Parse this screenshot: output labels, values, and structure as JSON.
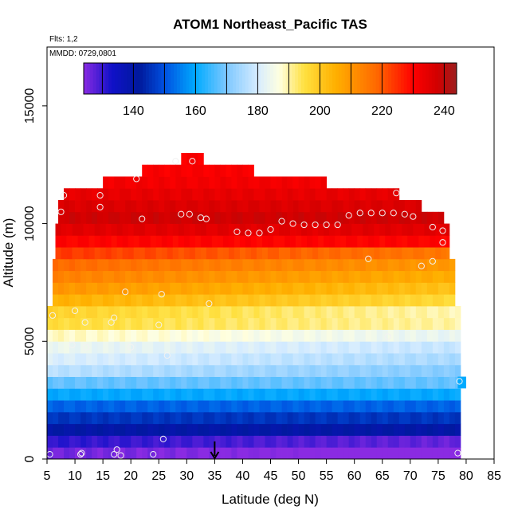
{
  "chart_data": {
    "type": "heatmap",
    "title": "ATOM1 Northeast_Pacific TAS",
    "xlabel": "Latitude (deg N)",
    "ylabel": "Altitude (m)",
    "xlim": [
      5,
      85
    ],
    "ylim": [
      0,
      17500
    ],
    "x_ticks": [
      5,
      10,
      15,
      20,
      25,
      30,
      35,
      40,
      45,
      50,
      55,
      60,
      65,
      70,
      75,
      80,
      85
    ],
    "y_ticks": [
      0,
      5000,
      10000,
      15000
    ],
    "notes": {
      "flights": "Flts: 1,2",
      "dates": "MMDD: 0729,0801"
    },
    "colorbar": {
      "range": [
        124,
        244
      ],
      "ticks": [
        140,
        160,
        180,
        200,
        220,
        240
      ],
      "stops": [
        {
          "v": 124,
          "c": "#8a2be2"
        },
        {
          "v": 133,
          "c": "#1010c8"
        },
        {
          "v": 142,
          "c": "#001a9c"
        },
        {
          "v": 150,
          "c": "#0050e0"
        },
        {
          "v": 160,
          "c": "#00aaff"
        },
        {
          "v": 170,
          "c": "#7ec8ff"
        },
        {
          "v": 180,
          "c": "#d6ecff"
        },
        {
          "v": 187,
          "c": "#ffffe0"
        },
        {
          "v": 195,
          "c": "#ffe040"
        },
        {
          "v": 205,
          "c": "#ffb000"
        },
        {
          "v": 218,
          "c": "#ff6a00"
        },
        {
          "v": 230,
          "c": "#ff0000"
        },
        {
          "v": 238,
          "c": "#d00000"
        },
        {
          "v": 244,
          "c": "#9c1e1e"
        }
      ]
    },
    "tas_profile": [
      {
        "alt": 250,
        "tas": 126
      },
      {
        "alt": 750,
        "tas": 131
      },
      {
        "alt": 1250,
        "tas": 140
      },
      {
        "alt": 1750,
        "tas": 146
      },
      {
        "alt": 2250,
        "tas": 152
      },
      {
        "alt": 2750,
        "tas": 160
      },
      {
        "alt": 3250,
        "tas": 168
      },
      {
        "alt": 3750,
        "tas": 174
      },
      {
        "alt": 4250,
        "tas": 178
      },
      {
        "alt": 4750,
        "tas": 181
      },
      {
        "alt": 5250,
        "tas": 186
      },
      {
        "alt": 5750,
        "tas": 193
      },
      {
        "alt": 6250,
        "tas": 198
      },
      {
        "alt": 6750,
        "tas": 205
      },
      {
        "alt": 7250,
        "tas": 210
      },
      {
        "alt": 7750,
        "tas": 214
      },
      {
        "alt": 8250,
        "tas": 218
      },
      {
        "alt": 8750,
        "tas": 224
      },
      {
        "alt": 9250,
        "tas": 230
      },
      {
        "alt": 9750,
        "tas": 235
      },
      {
        "alt": 10250,
        "tas": 238
      },
      {
        "alt": 10750,
        "tas": 236
      },
      {
        "alt": 11250,
        "tas": 234
      },
      {
        "alt": 11750,
        "tas": 232
      },
      {
        "alt": 12250,
        "tas": 231
      },
      {
        "alt": 12750,
        "tas": 231
      }
    ],
    "coverage": [
      {
        "alt_bottom": 0,
        "alt_top": 6500,
        "lat_min": 5,
        "lat_max": 79
      },
      {
        "alt_bottom": 6500,
        "alt_top": 8500,
        "lat_min": 6,
        "lat_max": 78
      },
      {
        "alt_bottom": 8500,
        "alt_top": 10000,
        "lat_min": 6.5,
        "lat_max": 77
      },
      {
        "alt_bottom": 10000,
        "alt_top": 10500,
        "lat_min": 7,
        "lat_max": 76
      },
      {
        "alt_bottom": 10500,
        "alt_top": 11000,
        "lat_min": 7,
        "lat_max": 72
      },
      {
        "alt_bottom": 11000,
        "alt_top": 11500,
        "lat_min": 8,
        "lat_max": 68
      },
      {
        "alt_bottom": 11500,
        "alt_top": 12000,
        "lat_min": 15,
        "lat_max": 55
      },
      {
        "alt_bottom": 12000,
        "alt_top": 12500,
        "lat_min": 22,
        "lat_max": 42
      },
      {
        "alt_bottom": 12500,
        "alt_top": 13000,
        "lat_min": 29,
        "lat_max": 33
      }
    ],
    "observations": [
      {
        "lat": 5.5,
        "alt": 200
      },
      {
        "lat": 11,
        "alt": 200
      },
      {
        "lat": 11.2,
        "alt": 250
      },
      {
        "lat": 17,
        "alt": 200
      },
      {
        "lat": 17.5,
        "alt": 400
      },
      {
        "lat": 18.2,
        "alt": 150
      },
      {
        "lat": 24,
        "alt": 200
      },
      {
        "lat": 25.8,
        "alt": 850
      },
      {
        "lat": 78.5,
        "alt": 250
      },
      {
        "lat": 6,
        "alt": 6100
      },
      {
        "lat": 10,
        "alt": 6300
      },
      {
        "lat": 11.8,
        "alt": 5800
      },
      {
        "lat": 9.5,
        "alt": 4850
      },
      {
        "lat": 12,
        "alt": 4750
      },
      {
        "lat": 16.5,
        "alt": 5800
      },
      {
        "lat": 17,
        "alt": 6000
      },
      {
        "lat": 19,
        "alt": 7100
      },
      {
        "lat": 20,
        "alt": 4750
      },
      {
        "lat": 25,
        "alt": 5700
      },
      {
        "lat": 25.5,
        "alt": 7000
      },
      {
        "lat": 26.5,
        "alt": 4400
      },
      {
        "lat": 34,
        "alt": 6600
      },
      {
        "lat": 66,
        "alt": 5200
      },
      {
        "lat": 78.8,
        "alt": 3300
      },
      {
        "lat": 62.5,
        "alt": 8500
      },
      {
        "lat": 72,
        "alt": 8200
      },
      {
        "lat": 74,
        "alt": 8400
      },
      {
        "lat": 75.8,
        "alt": 9200
      },
      {
        "lat": 75.8,
        "alt": 9700
      },
      {
        "lat": 74,
        "alt": 9850
      },
      {
        "lat": 8,
        "alt": 11200
      },
      {
        "lat": 7.5,
        "alt": 10500
      },
      {
        "lat": 14.5,
        "alt": 11200
      },
      {
        "lat": 14.5,
        "alt": 10700
      },
      {
        "lat": 21,
        "alt": 11900
      },
      {
        "lat": 22,
        "alt": 10200
      },
      {
        "lat": 28,
        "alt": 12650
      },
      {
        "lat": 31,
        "alt": 12650
      },
      {
        "lat": 29,
        "alt": 10400
      },
      {
        "lat": 30.5,
        "alt": 10400
      },
      {
        "lat": 32.5,
        "alt": 10250
      },
      {
        "lat": 33.5,
        "alt": 10200
      },
      {
        "lat": 39,
        "alt": 9650
      },
      {
        "lat": 41,
        "alt": 9600
      },
      {
        "lat": 43,
        "alt": 9600
      },
      {
        "lat": 45,
        "alt": 9750
      },
      {
        "lat": 47,
        "alt": 10100
      },
      {
        "lat": 49,
        "alt": 10000
      },
      {
        "lat": 51,
        "alt": 9950
      },
      {
        "lat": 53,
        "alt": 9950
      },
      {
        "lat": 55,
        "alt": 9950
      },
      {
        "lat": 57,
        "alt": 9950
      },
      {
        "lat": 59,
        "alt": 10350
      },
      {
        "lat": 61,
        "alt": 10450
      },
      {
        "lat": 63,
        "alt": 10450
      },
      {
        "lat": 65,
        "alt": 10450
      },
      {
        "lat": 67,
        "alt": 10450
      },
      {
        "lat": 67.5,
        "alt": 11300
      },
      {
        "lat": 69,
        "alt": 10400
      },
      {
        "lat": 70.5,
        "alt": 10300
      }
    ],
    "marker": {
      "lat": 35,
      "alt_from": 750,
      "alt_to": 0,
      "symbol": "arrow-down"
    }
  }
}
